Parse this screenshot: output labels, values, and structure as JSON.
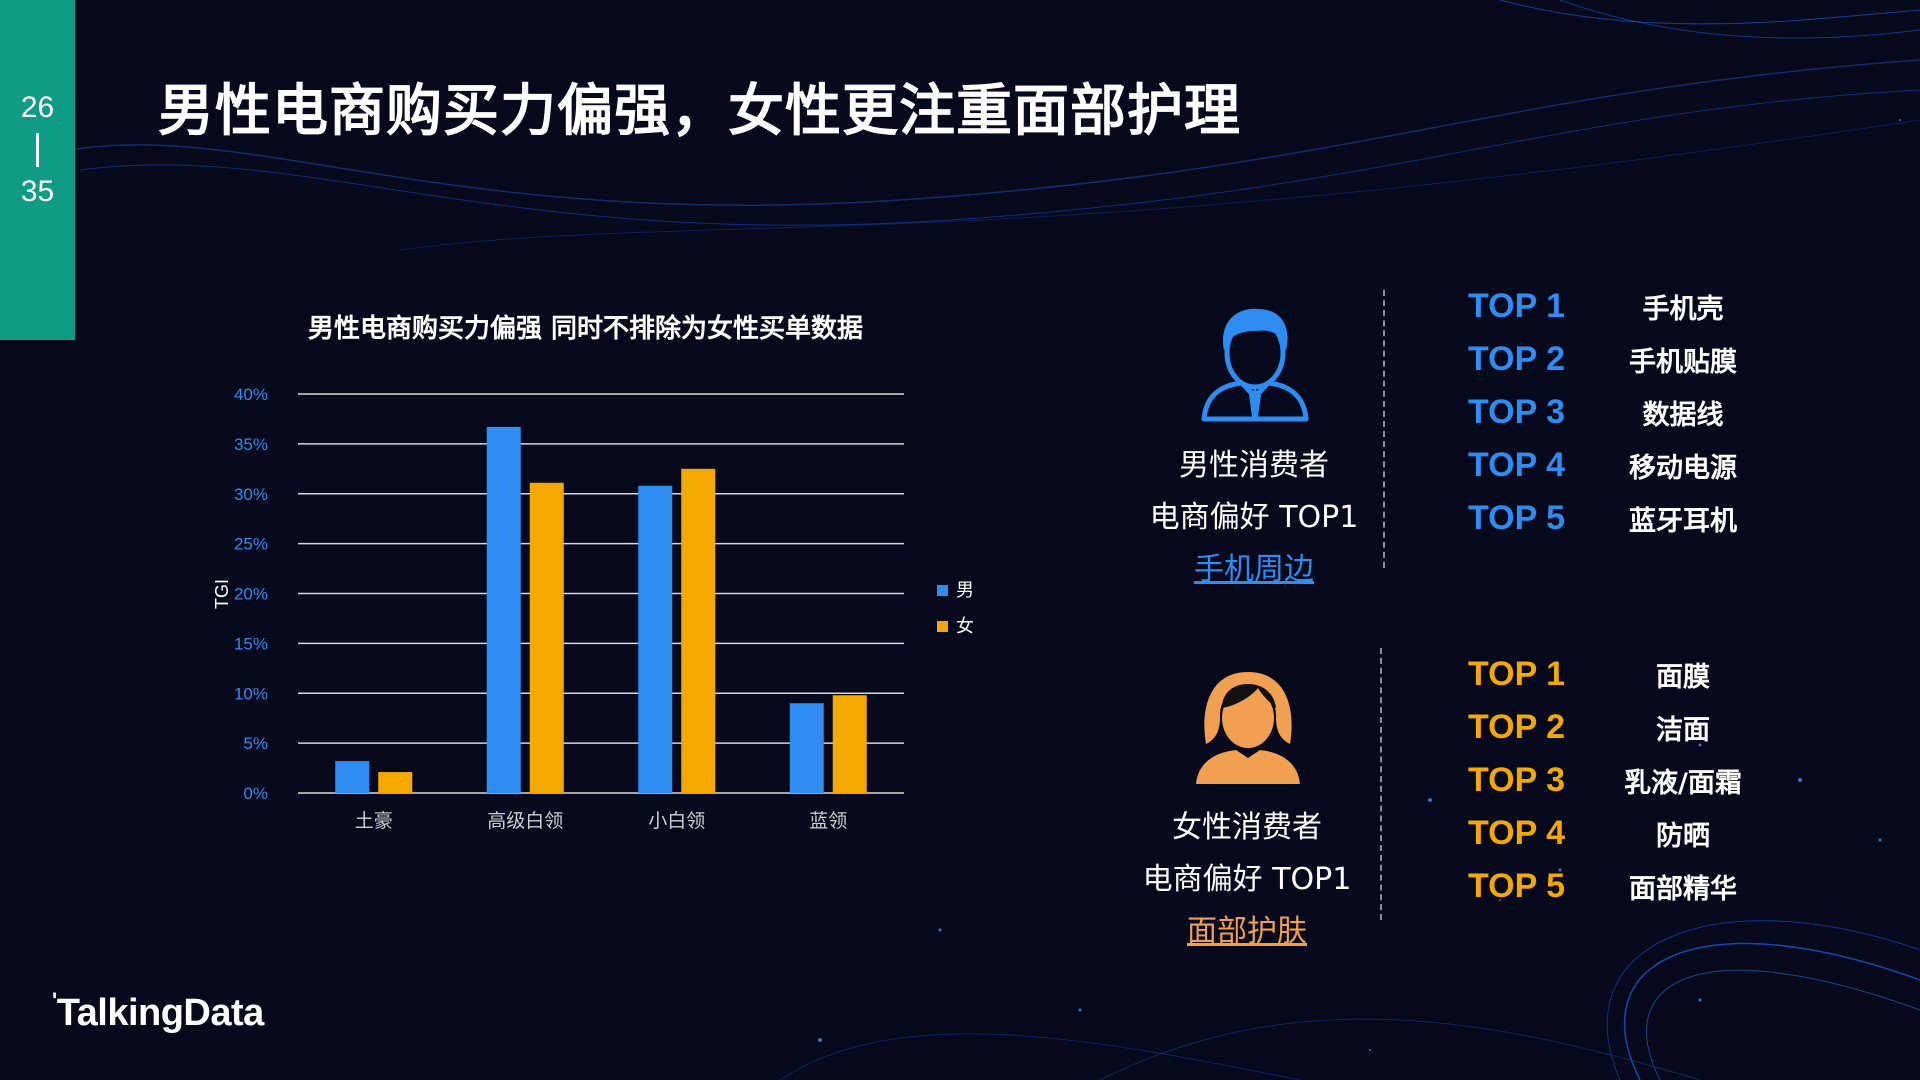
{
  "page": {
    "current": "26",
    "total": "35"
  },
  "title": "男性电商购买力偏强，女性更注重面部护理",
  "brand": "TalkingData",
  "colors": {
    "male": "#2f8cf0",
    "female": "#f5a800",
    "female_icon": "#f0a050",
    "accent": "#0f9b84"
  },
  "chart_data": {
    "type": "bar",
    "title": "男性电商购买力偏强 同时不排除为女性买单数据",
    "categories": [
      "土豪",
      "高级白领",
      "小白领",
      "蓝领"
    ],
    "series": [
      {
        "name": "男",
        "values": [
          3.2,
          36.7,
          30.8,
          9.0
        ]
      },
      {
        "name": "女",
        "values": [
          2.1,
          31.1,
          32.5,
          9.8
        ]
      }
    ],
    "ylabel": "TGI",
    "xlabel": "",
    "ylim": [
      0,
      40
    ],
    "yticks": [
      "0%",
      "5%",
      "10%",
      "15%",
      "20%",
      "25%",
      "30%",
      "35%",
      "40%"
    ],
    "grid": true,
    "legend_position": "right"
  },
  "male": {
    "icon": "male-user-icon",
    "line1": "男性消费者",
    "line2": "电商偏好 TOP1",
    "highlight": "手机周边",
    "ranks": [
      {
        "label": "TOP 1",
        "item": "手机壳"
      },
      {
        "label": "TOP 2",
        "item": "手机贴膜"
      },
      {
        "label": "TOP 3",
        "item": "数据线"
      },
      {
        "label": "TOP 4",
        "item": "移动电源"
      },
      {
        "label": "TOP 5",
        "item": "蓝牙耳机"
      }
    ]
  },
  "female": {
    "icon": "female-user-icon",
    "line1": "女性消费者",
    "line2": "电商偏好 TOP1",
    "highlight": "面部护肤",
    "ranks": [
      {
        "label": "TOP 1",
        "item": "面膜"
      },
      {
        "label": "TOP 2",
        "item": "洁面"
      },
      {
        "label": "TOP 3",
        "item": "乳液/面霜"
      },
      {
        "label": "TOP 4",
        "item": "防晒"
      },
      {
        "label": "TOP 5",
        "item": "面部精华"
      }
    ]
  }
}
